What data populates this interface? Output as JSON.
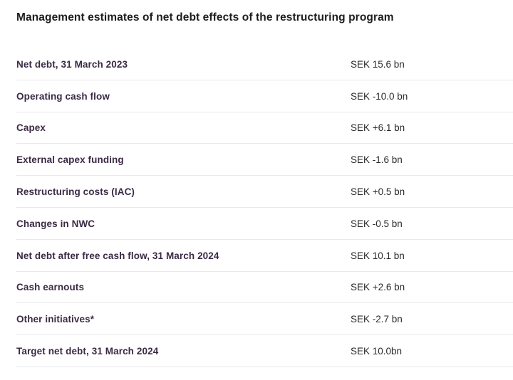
{
  "title": "Management estimates of net debt effects of the restructuring program",
  "currency_unit": "SEK bn",
  "table": {
    "rows": [
      {
        "label": "Net debt, 31 March 2023",
        "value": "SEK 15.6 bn"
      },
      {
        "label": "Operating cash flow",
        "value": "SEK -10.0 bn"
      },
      {
        "label": "Capex",
        "value": "SEK +6.1 bn"
      },
      {
        "label": "External capex funding",
        "value": "SEK -1.6 bn"
      },
      {
        "label": "Restructuring costs (IAC)",
        "value": "SEK +0.5 bn"
      },
      {
        "label": "Changes in NWC",
        "value": "SEK -0.5 bn"
      },
      {
        "label": "Net debt after free cash flow, 31 March 2024",
        "value": "SEK 10.1 bn"
      },
      {
        "label": "Cash earnouts",
        "value": "SEK +2.6 bn"
      },
      {
        "label": "Other initiatives*",
        "value": "SEK -2.7 bn"
      },
      {
        "label": "Target net debt, 31 March 2024",
        "value": "SEK 10.0bn"
      }
    ]
  },
  "colors": {
    "label": "#3b2a45",
    "value": "#2a2a2a",
    "title": "#1d1d1d",
    "divider": "#e9e9e9",
    "background": "#ffffff"
  }
}
